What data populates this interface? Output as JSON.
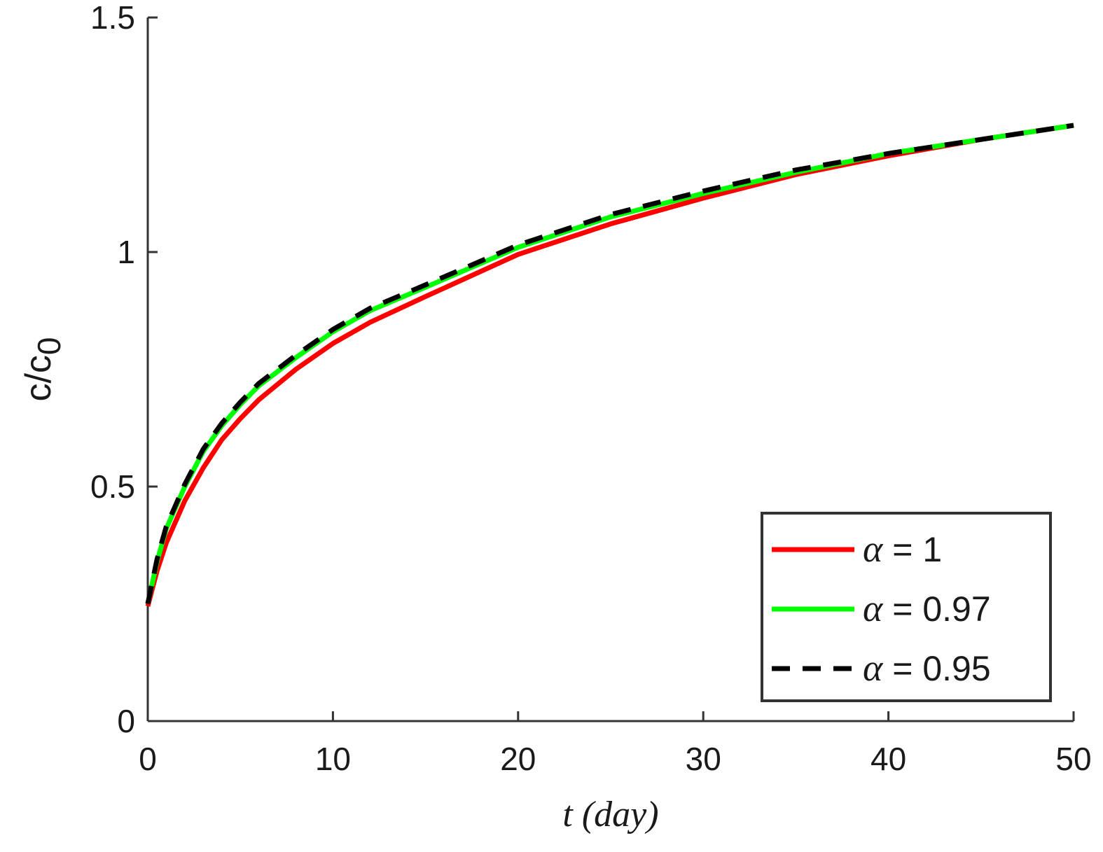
{
  "chart_data": {
    "type": "line",
    "title": "",
    "xlabel": "t (day)",
    "ylabel": "c/c0",
    "ylabel_base": "c/c",
    "ylabel_sub": "0",
    "xlim": [
      0,
      50
    ],
    "ylim": [
      0,
      1.5
    ],
    "xticks": [
      0,
      10,
      20,
      30,
      40,
      50
    ],
    "xtick_labels": [
      "0",
      "10",
      "20",
      "30",
      "40",
      "50"
    ],
    "yticks": [
      0,
      0.5,
      1,
      1.5
    ],
    "ytick_labels": [
      "0",
      "0.5",
      "1",
      "1.5"
    ],
    "grid": false,
    "legend_position": "bottom-right",
    "x": [
      0,
      0.5,
      1,
      2,
      3,
      4,
      5,
      6,
      8,
      10,
      12,
      15,
      20,
      25,
      30,
      35,
      40,
      45,
      50
    ],
    "series": [
      {
        "name": "α = 1",
        "color": "#ff0000",
        "dash": "solid",
        "values": [
          0.245,
          0.32,
          0.38,
          0.47,
          0.54,
          0.6,
          0.645,
          0.685,
          0.75,
          0.805,
          0.85,
          0.905,
          0.995,
          1.06,
          1.115,
          1.165,
          1.205,
          1.24,
          1.27
        ]
      },
      {
        "name": "α = 0.97",
        "color": "#00ff00",
        "dash": "solid",
        "values": [
          0.25,
          0.34,
          0.41,
          0.5,
          0.575,
          0.63,
          0.675,
          0.715,
          0.775,
          0.83,
          0.875,
          0.925,
          1.01,
          1.075,
          1.125,
          1.17,
          1.21,
          1.24,
          1.27
        ]
      },
      {
        "name": "α = 0.95",
        "color": "#000000",
        "dash": "dashed",
        "values": [
          0.25,
          0.345,
          0.415,
          0.505,
          0.58,
          0.635,
          0.68,
          0.72,
          0.78,
          0.835,
          0.88,
          0.93,
          1.015,
          1.08,
          1.13,
          1.175,
          1.21,
          1.24,
          1.27
        ]
      }
    ],
    "legend_entries": [
      {
        "symbol": "α",
        "rest": " = 1"
      },
      {
        "symbol": "α",
        "rest": " = 0.97"
      },
      {
        "symbol": "α",
        "rest": " = 0.95"
      }
    ]
  }
}
